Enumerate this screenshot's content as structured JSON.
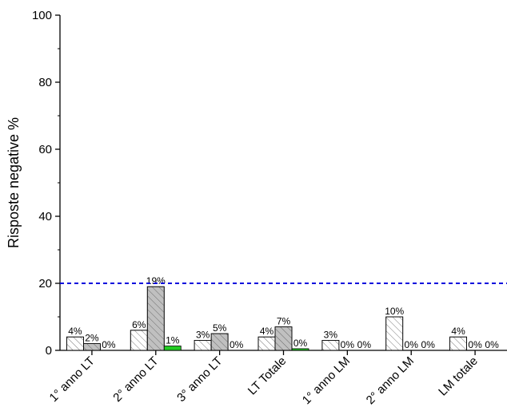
{
  "chart_data": {
    "type": "bar",
    "title": "",
    "xlabel": "",
    "ylabel": "Risposte negative %",
    "ylim": [
      0,
      100
    ],
    "yticks": [
      0,
      20,
      40,
      60,
      80,
      100
    ],
    "categories": [
      "1° anno LT",
      "2° anno LT",
      "3° anno LT",
      "LT Totale",
      "1° anno LM",
      "2° anno LM",
      "LM totale"
    ],
    "series": [
      {
        "values": [
          4,
          6,
          3,
          4,
          3,
          10,
          4
        ],
        "labels": [
          "4%",
          "6%",
          "3%",
          "4%",
          "3%",
          "10%",
          "4%"
        ],
        "fill": "#ffffff",
        "pattern": "hatch"
      },
      {
        "values": [
          2,
          19,
          5,
          7,
          0,
          0,
          0
        ],
        "labels": [
          "2%",
          "19%",
          "5%",
          "7%",
          "0%",
          "0%",
          "0%"
        ],
        "fill": "#c0c0c0",
        "pattern": "hatch"
      },
      {
        "values": [
          0,
          1.3,
          0,
          0.5,
          0,
          0,
          0
        ],
        "labels": [
          "0%",
          "1%",
          "0%",
          "0%",
          "0%",
          "0%",
          "0%"
        ],
        "fill": "#22cc22",
        "pattern": "solid"
      }
    ],
    "reference_line": {
      "y": 20,
      "color": "#0000dd",
      "style": "dashed"
    },
    "grid": false,
    "legend": "none"
  }
}
